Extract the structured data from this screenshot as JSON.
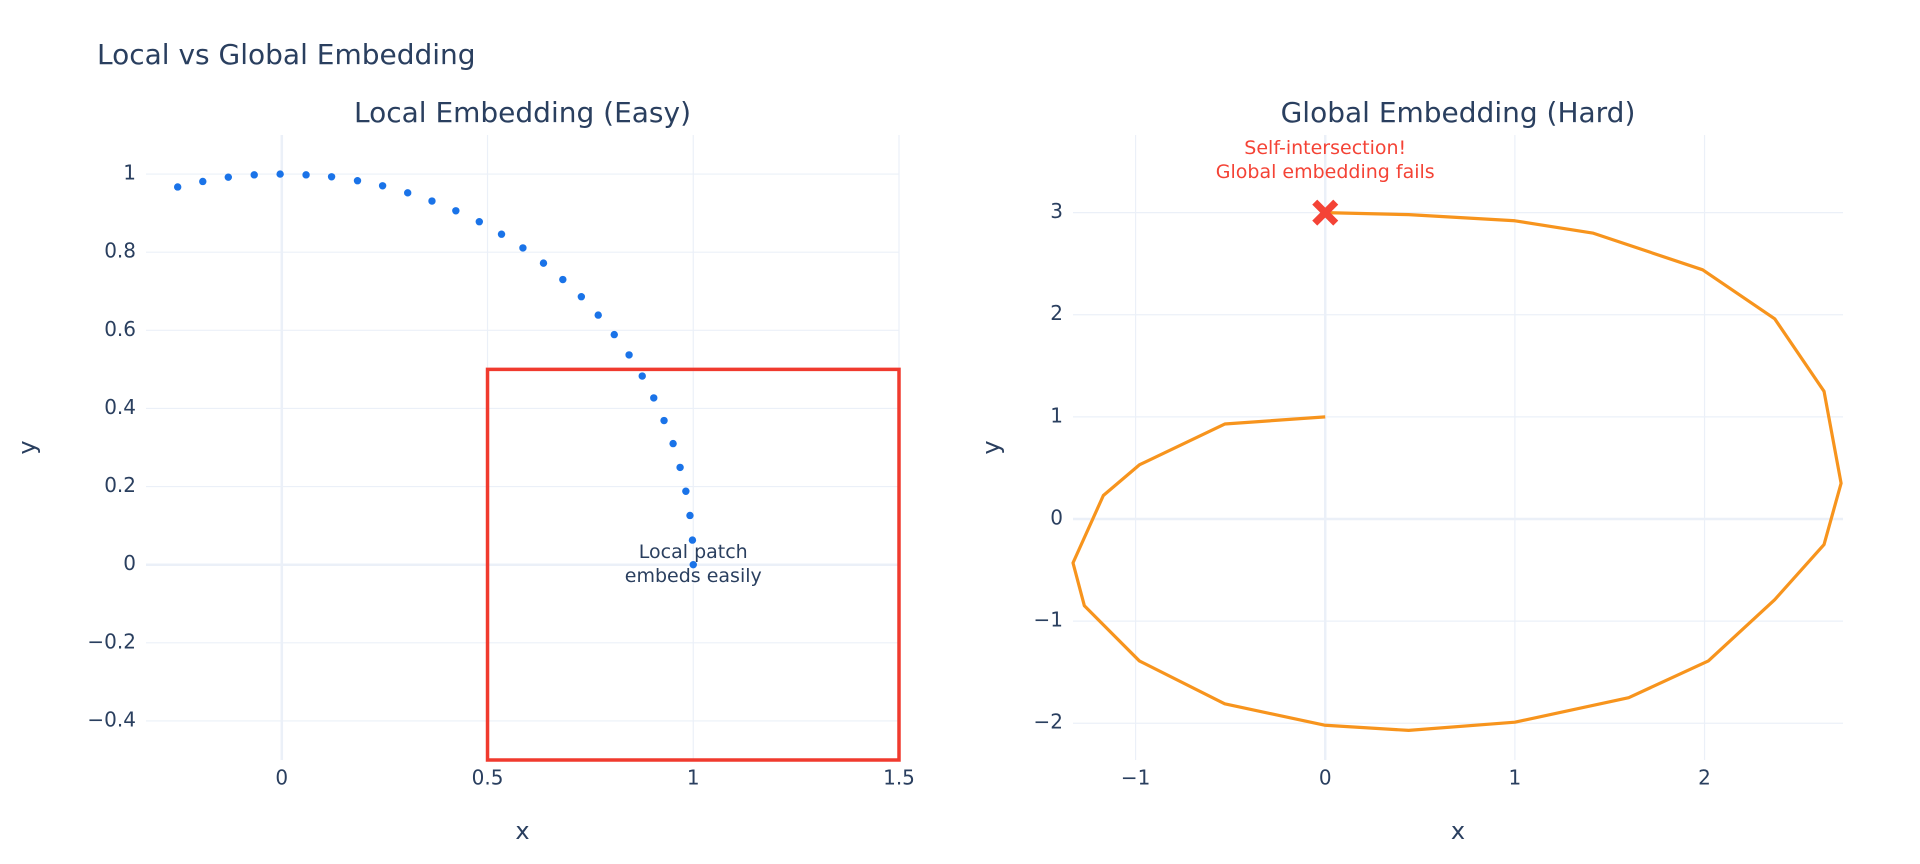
{
  "title": "Local vs Global Embedding",
  "chart_data": [
    {
      "type": "scatter",
      "title": "Local Embedding (Easy)",
      "xlabel": "x",
      "ylabel": "y",
      "color": "#1a73e8",
      "x": [
        -0.253,
        -0.192,
        -0.13,
        -0.067,
        -0.004,
        0.059,
        0.121,
        0.184,
        0.245,
        0.306,
        0.365,
        0.423,
        0.48,
        0.534,
        0.586,
        0.636,
        0.683,
        0.728,
        0.769,
        0.808,
        0.844,
        0.876,
        0.904,
        0.929,
        0.951,
        0.968,
        0.982,
        0.992,
        0.998,
        1
      ],
      "values": [
        0.967,
        0.981,
        0.992,
        0.998,
        1,
        0.998,
        0.993,
        0.983,
        0.97,
        0.952,
        0.931,
        0.906,
        0.878,
        0.846,
        0.811,
        0.772,
        0.73,
        0.686,
        0.639,
        0.589,
        0.537,
        0.483,
        0.427,
        0.369,
        0.31,
        0.249,
        0.188,
        0.126,
        0.063,
        0
      ],
      "xlim": [
        -0.33,
        1.5
      ],
      "ylim": [
        -0.5,
        1.1
      ],
      "xticks": [
        0,
        0.5,
        1,
        1.5
      ],
      "yticks": [
        {
          "value": -0.4,
          "label": "−0.4"
        },
        {
          "value": -0.2,
          "label": "−0.2"
        },
        0,
        0.2,
        0.4,
        0.6,
        0.8,
        1
      ],
      "grid": true,
      "shapes": [
        {
          "type": "rect",
          "x0": 0.5,
          "x1": 1.5,
          "y0": -0.5,
          "y1": 0.5,
          "color": "#f03a2e"
        }
      ],
      "annotations": [
        {
          "x": 1,
          "y": 0,
          "text": [
            "Local patch",
            "embeds easily"
          ],
          "color": "#2a3f5f"
        }
      ]
    },
    {
      "type": "line",
      "title": "Global Embedding (Hard)",
      "xlabel": "x",
      "ylabel": "y",
      "color": "#f7941d",
      "x": [
        0,
        -0.53,
        -0.98,
        -1.17,
        -1.33,
        -1.27,
        -0.98,
        -0.53,
        0,
        0.44,
        1,
        1.6,
        2.02,
        2.37,
        2.63,
        2.72,
        2.63,
        2.37,
        1.99,
        1.41,
        1,
        0.44,
        0
      ],
      "values": [
        1,
        0.93,
        0.53,
        0.23,
        -0.43,
        -0.85,
        -1.39,
        -1.81,
        -2.02,
        -2.07,
        -1.99,
        -1.75,
        -1.39,
        -0.79,
        -0.25,
        0.35,
        1.25,
        1.96,
        2.44,
        2.8,
        2.92,
        2.98,
        3
      ],
      "xlim": [
        -1.33,
        2.73
      ],
      "ylim": [
        -2.36,
        3.76
      ],
      "xticks": [
        {
          "value": -1,
          "label": "−1"
        },
        0,
        1,
        2
      ],
      "yticks": [
        {
          "value": -2,
          "label": "−2"
        },
        {
          "value": -1,
          "label": "−1"
        },
        0,
        1,
        2,
        3
      ],
      "grid": true,
      "markers": [
        {
          "x": 0,
          "y": 3,
          "symbol": "x",
          "color": "#f44336"
        }
      ],
      "annotations": [
        {
          "x": 0,
          "y": 3,
          "text": [
            "Self-intersection!",
            "Global embedding fails"
          ],
          "color": "#f44336"
        }
      ]
    }
  ]
}
